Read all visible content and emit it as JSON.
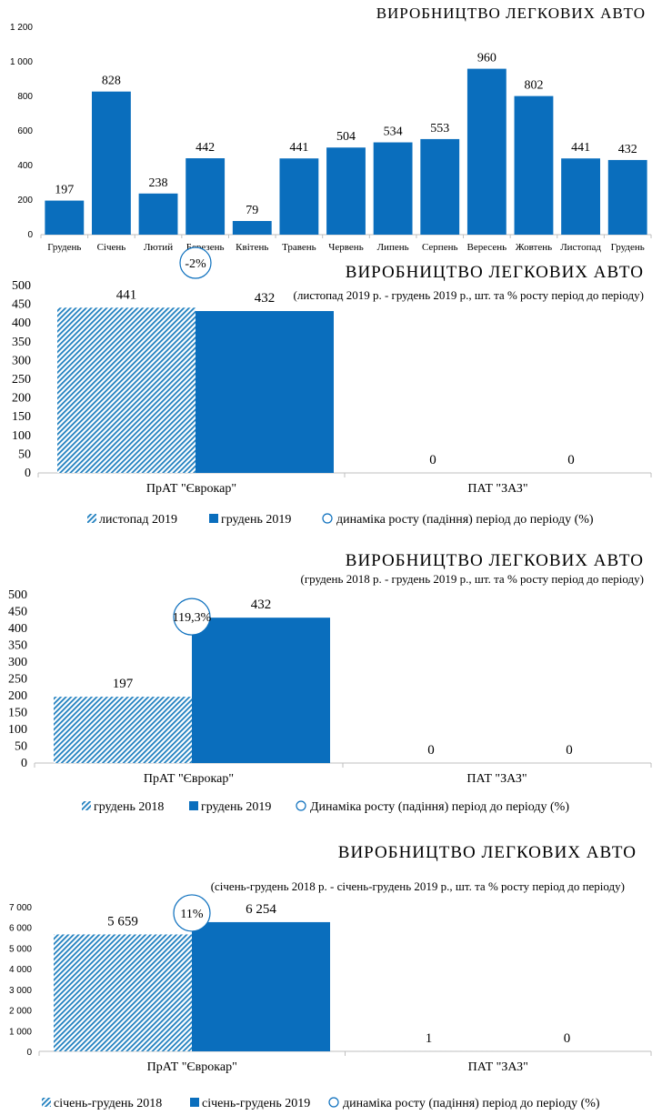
{
  "colors": {
    "bar": "#0a6ebd",
    "axis": "#bfbfbf",
    "circle": "#0a6ebd",
    "hatch": "#1f7fbf"
  },
  "chart_data": [
    {
      "type": "bar",
      "title": "ВИРОБНИЦТВО ЛЕГКОВИХ АВТО",
      "categories": [
        "Грудень",
        "Січень",
        "Лютий",
        "Березень",
        "Квітень",
        "Травень",
        "Червень",
        "Липень",
        "Серпень",
        "Вересень",
        "Жовтень",
        "Листопад",
        "Грудень"
      ],
      "values": [
        197,
        828,
        238,
        442,
        79,
        441,
        504,
        534,
        553,
        960,
        802,
        441,
        432
      ],
      "value_labels": [
        "197",
        "828",
        "238",
        "442",
        "79",
        "441",
        "504",
        "534",
        "553",
        "960",
        "802",
        "441",
        "432"
      ],
      "ylim": [
        0,
        1200
      ],
      "yticks": [
        0,
        200,
        400,
        600,
        800,
        1000,
        1200
      ],
      "ytick_labels": [
        "0",
        "200",
        "400",
        "600",
        "800",
        "1 000",
        "1 200"
      ],
      "grid": false
    },
    {
      "type": "bar",
      "title": "ВИРОБНИЦТВО ЛЕГКОВИХ АВТО",
      "subtitle": "(листопад 2019 р. - грудень 2019 р., шт. та % росту період до періоду)",
      "categories": [
        "ПрАТ \"Єврокар\"",
        "ПАТ \"ЗАЗ\""
      ],
      "series": [
        {
          "name": "листопад 2019",
          "values": [
            441,
            0
          ],
          "labels": [
            "441",
            "0"
          ],
          "pattern": "hatch"
        },
        {
          "name": "грудень 2019",
          "values": [
            432,
            0
          ],
          "labels": [
            "432",
            "0"
          ],
          "pattern": "solid"
        }
      ],
      "growth": {
        "label": "-2%",
        "category_index": 0
      },
      "growth_legend": "динаміка росту (падіння) період до періоду (%)",
      "ylim": [
        0,
        500
      ],
      "yticks": [
        0,
        50,
        100,
        150,
        200,
        250,
        300,
        350,
        400,
        450,
        500
      ],
      "ytick_labels": [
        "0",
        "50",
        "100",
        "150",
        "200",
        "250",
        "300",
        "350",
        "400",
        "450",
        "500"
      ],
      "legend": "bottom"
    },
    {
      "type": "bar",
      "title": "ВИРОБНИЦТВО ЛЕГКОВИХ АВТО",
      "subtitle": "(грудень 2018 р. - грудень 2019 р., шт. та % росту період до періоду)",
      "categories": [
        "ПрАТ \"Єврокар\"",
        "ПАТ \"ЗАЗ\""
      ],
      "series": [
        {
          "name": "грудень 2018",
          "values": [
            197,
            0
          ],
          "labels": [
            "197",
            "0"
          ],
          "pattern": "hatch"
        },
        {
          "name": "грудень 2019",
          "values": [
            432,
            0
          ],
          "labels": [
            "432",
            "0"
          ],
          "pattern": "solid"
        }
      ],
      "growth": {
        "label": "119,3%",
        "category_index": 0
      },
      "growth_legend": "Динаміка росту (падіння) період до періоду (%)",
      "ylim": [
        0,
        500
      ],
      "yticks": [
        0,
        50,
        100,
        150,
        200,
        250,
        300,
        350,
        400,
        450,
        500
      ],
      "ytick_labels": [
        "0",
        "50",
        "100",
        "150",
        "200",
        "250",
        "300",
        "350",
        "400",
        "450",
        "500"
      ],
      "legend": "bottom"
    },
    {
      "type": "bar",
      "title": "ВИРОБНИЦТВО ЛЕГКОВИХ АВТО",
      "subtitle": "(січень-грудень 2018 р. - січень-грудень 2019 р., шт. та % росту період до періоду)",
      "categories": [
        "ПрАТ \"Єврокар\"",
        "ПАТ \"ЗАЗ\""
      ],
      "series": [
        {
          "name": "січень-грудень 2018",
          "values": [
            5659,
            1
          ],
          "labels": [
            "5 659",
            "1"
          ],
          "pattern": "hatch"
        },
        {
          "name": "січень-грудень 2019",
          "values": [
            6254,
            0
          ],
          "labels": [
            "6 254",
            "0"
          ],
          "pattern": "solid"
        }
      ],
      "growth": {
        "label": "11%",
        "category_index": 0
      },
      "growth_legend": "динаміка росту (падіння) період до періоду (%)",
      "ylim": [
        0,
        7000
      ],
      "yticks": [
        0,
        1000,
        2000,
        3000,
        4000,
        5000,
        6000,
        7000
      ],
      "ytick_labels": [
        "0",
        "1 000",
        "2 000",
        "3 000",
        "4 000",
        "5 000",
        "6 000",
        "7 000"
      ],
      "legend": "bottom"
    }
  ]
}
